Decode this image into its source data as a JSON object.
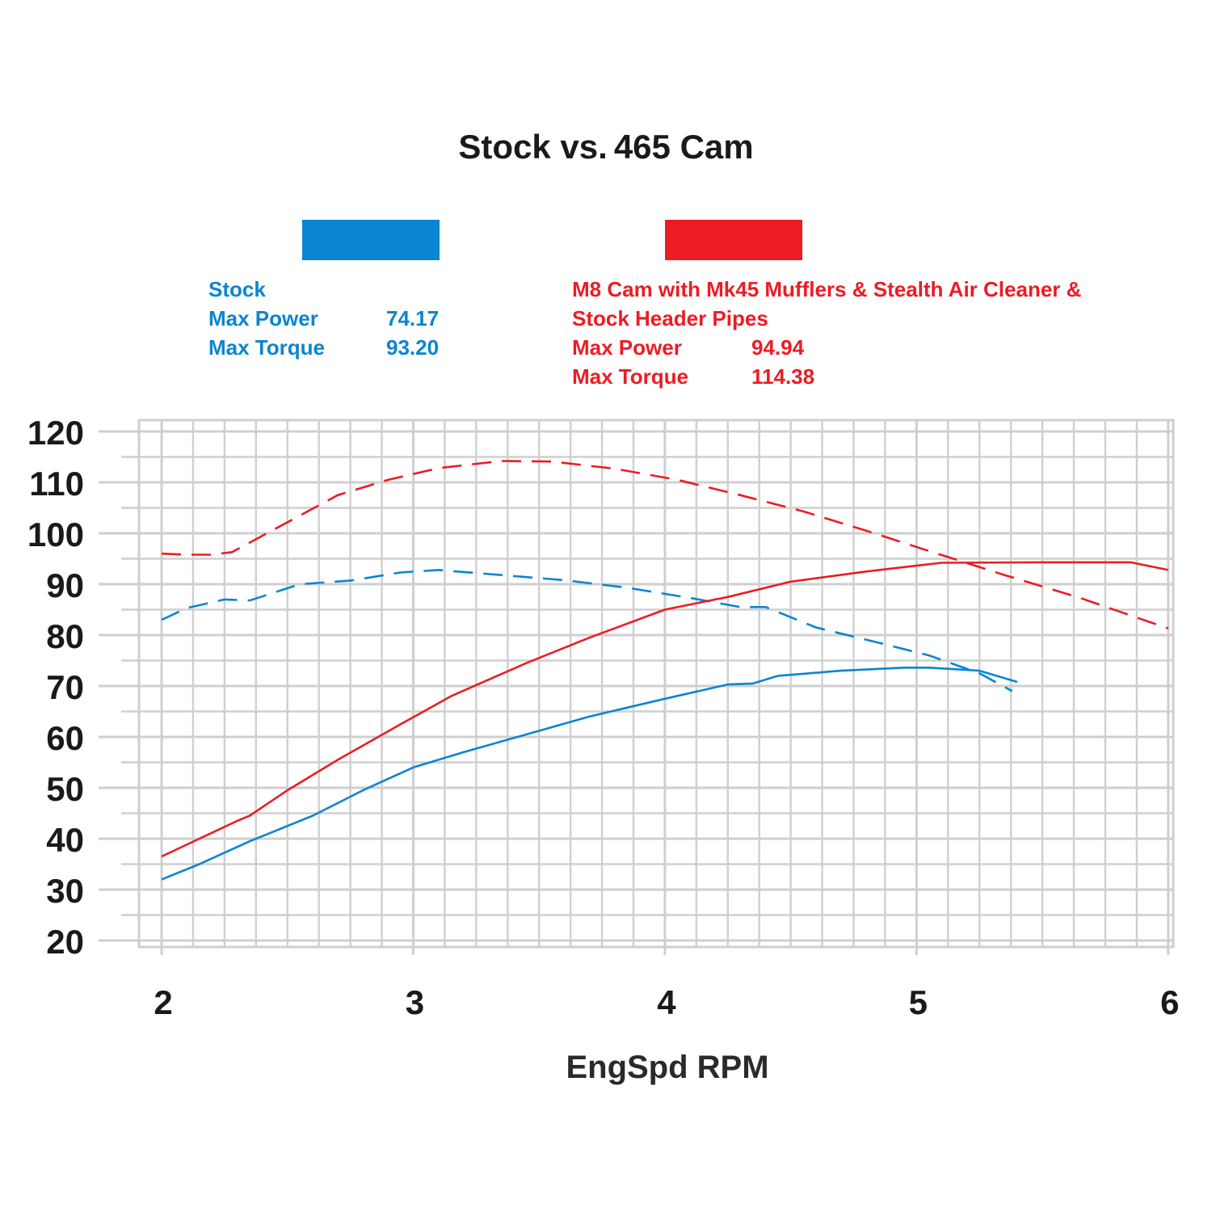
{
  "title": {
    "left": "Stock vs.",
    "right": "465 Cam"
  },
  "colors": {
    "stock": "#0a85d1",
    "cam": "#ec1c24",
    "grid": "#cfcfcf",
    "text": "#1a1a1a"
  },
  "legend": {
    "stock": {
      "name": "Stock",
      "power_label": "Max Power",
      "power_value": "74.17",
      "torque_label": "Max Torque",
      "torque_value": "93.20"
    },
    "cam": {
      "name_line1": "M8 Cam with Mk45 Mufflers & Stealth Air Cleaner &",
      "name_line2": "Stock Header Pipes",
      "power_label": "Max Power",
      "power_value": "94.94",
      "torque_label": "Max Torque",
      "torque_value": "114.38"
    }
  },
  "chart_data": {
    "type": "line",
    "title": "Stock vs. 465 Cam",
    "xlabel": "EngSpd RPM",
    "ylabel": "",
    "xlim": [
      1.91,
      6.02
    ],
    "ylim": [
      20,
      120
    ],
    "x_ticks": [
      "2",
      "3",
      "4",
      "5",
      "6"
    ],
    "y_ticks": [
      "20",
      "30",
      "40",
      "50",
      "60",
      "70",
      "80",
      "90",
      "100",
      "110",
      "120"
    ],
    "grid": true,
    "series": [
      {
        "name": "Stock",
        "measure": "power",
        "color": "#0a85d1",
        "dash": false,
        "x": [
          2.0,
          2.15,
          2.35,
          2.6,
          2.8,
          3.0,
          3.2,
          3.45,
          3.7,
          4.0,
          4.25,
          4.35,
          4.45,
          4.7,
          4.95,
          5.05,
          5.25,
          5.4
        ],
        "y": [
          32,
          35,
          39.5,
          44.5,
          49.5,
          54,
          57,
          60.5,
          64,
          67.5,
          70.3,
          70.5,
          72,
          73,
          73.6,
          73.6,
          73,
          70.8
        ]
      },
      {
        "name": "Stock",
        "measure": "torque",
        "color": "#0a85d1",
        "dash": true,
        "x": [
          2.0,
          2.1,
          2.25,
          2.35,
          2.55,
          2.75,
          2.95,
          3.1,
          3.35,
          3.6,
          3.85,
          4.1,
          4.3,
          4.4,
          4.6,
          4.85,
          5.05,
          5.25,
          5.38
        ],
        "y": [
          83,
          85.3,
          87,
          86.8,
          90,
          90.7,
          92.3,
          92.8,
          91.8,
          90.8,
          89.3,
          87.3,
          85.5,
          85.5,
          81.5,
          78.5,
          76,
          72.5,
          69
        ]
      },
      {
        "name": "M8 Cam with Mk45 Mufflers & Stealth Air Cleaner & Stock Header Pipes",
        "measure": "power",
        "color": "#ec1c24",
        "dash": false,
        "x": [
          2.0,
          2.15,
          2.3,
          2.35,
          2.5,
          2.7,
          2.95,
          3.15,
          3.45,
          3.7,
          4.0,
          4.25,
          4.5,
          4.8,
          5.1,
          5.5,
          5.85,
          6.0
        ],
        "y": [
          36.5,
          40,
          43.5,
          44.5,
          49.5,
          55.5,
          62.5,
          68,
          74.5,
          79.5,
          85,
          87.5,
          90.5,
          92.5,
          94.2,
          94.3,
          94.3,
          92.8
        ]
      },
      {
        "name": "M8 Cam with Mk45 Mufflers & Stealth Air Cleaner & Stock Header Pipes",
        "measure": "torque",
        "color": "#ec1c24",
        "dash": true,
        "x": [
          2.0,
          2.1,
          2.2,
          2.28,
          2.4,
          2.55,
          2.7,
          2.9,
          3.1,
          3.35,
          3.55,
          3.8,
          4.05,
          4.3,
          4.55,
          4.8,
          5.05,
          5.35,
          5.65,
          6.0
        ],
        "y": [
          96,
          95.8,
          95.8,
          96.3,
          99.5,
          103.5,
          107.5,
          110.5,
          112.8,
          114.2,
          114.1,
          112.7,
          110.5,
          107.5,
          104.3,
          100.5,
          96.5,
          91.8,
          87.3,
          81.3
        ]
      }
    ]
  }
}
